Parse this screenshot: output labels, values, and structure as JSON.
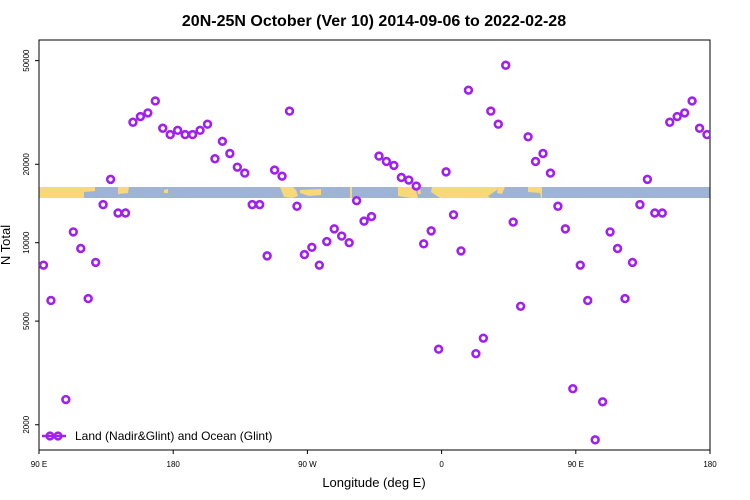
{
  "chart_data": {
    "type": "scatter",
    "title": "20N-25N October (Ver 10)   2014-09-06 to 2022-02-28",
    "xlabel": "Longitude (deg E)",
    "ylabel": "N Total",
    "y_scale": "log",
    "xlim": [
      90,
      540
    ],
    "ylim": [
      1600,
      60000
    ],
    "x_ticks": [
      {
        "value": 90,
        "label": "90 E"
      },
      {
        "value": 180,
        "label": "180"
      },
      {
        "value": 270,
        "label": "90 W"
      },
      {
        "value": 360,
        "label": "0"
      },
      {
        "value": 450,
        "label": "90 E"
      },
      {
        "value": 540,
        "label": "180"
      }
    ],
    "y_ticks": [
      {
        "value": 2000,
        "label": "2000"
      },
      {
        "value": 5000,
        "label": "5000"
      },
      {
        "value": 10000,
        "label": "10000"
      },
      {
        "value": 20000,
        "label": "20000"
      },
      {
        "value": 50000,
        "label": "50000"
      }
    ],
    "legend": {
      "placement": "bottom-left",
      "entries": [
        "Land (Nadir&Glint) and Ocean (Glint)"
      ]
    },
    "marker_color": "#a020f0",
    "map_strip": {
      "ocean_color": "#9fb4d4",
      "land_color": "#f8d878"
    },
    "series": [
      {
        "name": "Land (Nadir&Glint) and Ocean (Glint)",
        "points": [
          [
            93,
            8200
          ],
          [
            98,
            6000
          ],
          [
            108,
            2500
          ],
          [
            113,
            11000
          ],
          [
            118,
            9500
          ],
          [
            123,
            6100
          ],
          [
            128,
            8400
          ],
          [
            133,
            14000
          ],
          [
            138,
            17500
          ],
          [
            143,
            13000
          ],
          [
            148,
            13000
          ],
          [
            153,
            29000
          ],
          [
            158,
            30500
          ],
          [
            163,
            31500
          ],
          [
            168,
            35000
          ],
          [
            173,
            27500
          ],
          [
            178,
            26000
          ],
          [
            183,
            27000
          ],
          [
            188,
            26000
          ],
          [
            193,
            26000
          ],
          [
            198,
            27000
          ],
          [
            203,
            28500
          ],
          [
            208,
            21000
          ],
          [
            213,
            24500
          ],
          [
            218,
            22000
          ],
          [
            223,
            19500
          ],
          [
            228,
            18500
          ],
          [
            233,
            14000
          ],
          [
            238,
            14000
          ],
          [
            243,
            8900
          ],
          [
            248,
            19000
          ],
          [
            253,
            18000
          ],
          [
            258,
            32000
          ],
          [
            263,
            13800
          ],
          [
            268,
            9000
          ],
          [
            273,
            9600
          ],
          [
            278,
            8200
          ],
          [
            283,
            10100
          ],
          [
            288,
            11300
          ],
          [
            293,
            10600
          ],
          [
            298,
            10000
          ],
          [
            303,
            14500
          ],
          [
            308,
            12100
          ],
          [
            313,
            12600
          ],
          [
            318,
            21500
          ],
          [
            323,
            20500
          ],
          [
            328,
            19800
          ],
          [
            333,
            17800
          ],
          [
            338,
            17400
          ],
          [
            343,
            16500
          ],
          [
            348,
            9900
          ],
          [
            353,
            11100
          ],
          [
            358,
            3900
          ],
          [
            363,
            18700
          ],
          [
            368,
            12800
          ],
          [
            373,
            9300
          ],
          [
            378,
            38500
          ],
          [
            383,
            3750
          ],
          [
            388,
            4300
          ],
          [
            393,
            32000
          ],
          [
            398,
            28500
          ],
          [
            403,
            48000
          ],
          [
            408,
            12000
          ],
          [
            413,
            5700
          ],
          [
            418,
            25500
          ],
          [
            423,
            20500
          ],
          [
            428,
            22000
          ],
          [
            433,
            18500
          ],
          [
            438,
            13800
          ],
          [
            443,
            11300
          ],
          [
            448,
            2750
          ],
          [
            453,
            8200
          ],
          [
            458,
            6000
          ],
          [
            463,
            1750
          ],
          [
            468,
            2450
          ],
          [
            473,
            11000
          ],
          [
            478,
            9500
          ],
          [
            483,
            6100
          ],
          [
            488,
            8400
          ],
          [
            493,
            14000
          ],
          [
            498,
            17500
          ],
          [
            503,
            13000
          ],
          [
            508,
            13000
          ],
          [
            513,
            29000
          ],
          [
            518,
            30500
          ],
          [
            523,
            31500
          ],
          [
            528,
            35000
          ],
          [
            533,
            27500
          ],
          [
            538,
            26000
          ]
        ]
      }
    ]
  }
}
